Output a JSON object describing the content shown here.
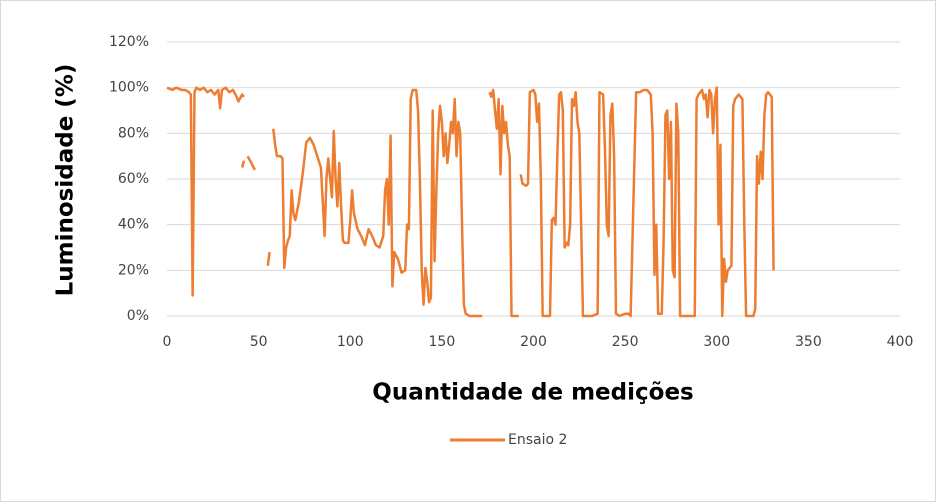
{
  "chart_data": {
    "type": "line",
    "x_label": "Quantidade de medições",
    "y_label": "Luminosidade (%)",
    "xlim": [
      0,
      400
    ],
    "xticks": [
      0,
      50,
      100,
      150,
      200,
      250,
      300,
      350,
      400
    ],
    "ylim": [
      0,
      120
    ],
    "yticks": [
      {
        "value": 0,
        "label": "0%"
      },
      {
        "value": 20,
        "label": "20%"
      },
      {
        "value": 40,
        "label": "40%"
      },
      {
        "value": 60,
        "label": "60%"
      },
      {
        "value": 80,
        "label": "80%"
      },
      {
        "value": 100,
        "label": "100%"
      },
      {
        "value": 120,
        "label": "120%"
      }
    ],
    "grid": true,
    "legend": "bottom",
    "x": [
      0,
      3,
      5,
      8,
      10,
      12,
      13,
      14,
      15,
      16,
      18,
      20,
      22,
      24,
      26,
      28,
      29,
      30,
      32,
      34,
      36,
      38,
      39,
      41,
      42,
      null,
      41,
      42,
      null,
      44,
      46,
      48,
      null,
      55,
      56,
      null,
      58,
      59,
      60,
      62,
      63,
      64,
      65,
      66,
      67,
      68,
      69,
      70,
      72,
      74,
      76,
      78,
      80,
      82,
      84,
      86,
      87,
      88,
      90,
      91,
      92,
      93,
      94,
      95,
      96,
      97,
      99,
      100,
      101,
      102,
      104,
      106,
      108,
      110,
      112,
      114,
      116,
      118,
      119,
      120,
      121,
      122,
      123,
      124,
      126,
      128,
      130,
      131,
      132,
      133,
      134,
      136,
      137,
      138,
      139,
      140,
      141,
      142,
      143,
      144,
      145,
      146,
      147,
      148,
      149,
      150,
      151,
      152,
      153,
      154,
      155,
      156,
      157,
      158,
      159,
      160,
      161,
      162,
      163,
      165,
      168,
      170,
      172,
      null,
      176,
      177,
      178,
      179,
      180,
      181,
      182,
      183,
      184,
      185,
      186,
      187,
      188,
      190,
      192,
      null,
      193,
      194,
      196,
      197,
      198,
      200,
      201,
      202,
      203,
      204,
      205,
      207,
      209,
      210,
      211,
      212,
      213,
      214,
      215,
      216,
      217,
      218,
      219,
      220,
      221,
      222,
      223,
      224,
      225,
      226,
      227,
      230,
      232,
      235,
      236,
      238,
      239,
      240,
      241,
      242,
      243,
      244,
      245,
      247,
      250,
      252,
      253,
      256,
      258,
      260,
      262,
      264,
      265,
      266,
      267,
      268,
      270,
      271,
      272,
      273,
      274,
      275,
      276,
      277,
      278,
      279,
      280,
      284,
      286,
      288,
      289,
      290,
      292,
      293,
      294,
      295,
      296,
      297,
      298,
      299,
      300,
      301,
      302,
      303,
      304,
      305,
      306,
      308,
      309,
      310,
      312,
      313,
      314,
      315,
      316,
      320,
      321,
      322,
      323,
      324,
      325,
      326,
      327,
      328,
      329,
      330,
      331
    ],
    "series": [
      {
        "name": "Ensaio 2",
        "color": "#ed7d31",
        "values": [
          100,
          99,
          100,
          99,
          99,
          98,
          97,
          9,
          98,
          100,
          99,
          100,
          98,
          99,
          97,
          99,
          91,
          99,
          100,
          98,
          99,
          96,
          94,
          97,
          96,
          null,
          65,
          68,
          null,
          70,
          67,
          64,
          null,
          22,
          28,
          null,
          82,
          75,
          70,
          70,
          69,
          21,
          30,
          33,
          35,
          55,
          45,
          42,
          50,
          62,
          76,
          78,
          75,
          70,
          65,
          35,
          60,
          69,
          52,
          81,
          60,
          48,
          67,
          48,
          33,
          32,
          32,
          42,
          55,
          45,
          38,
          35,
          31,
          38,
          35,
          31,
          30,
          35,
          55,
          60,
          40,
          79,
          13,
          28,
          25,
          19,
          20,
          40,
          38,
          95,
          99,
          99,
          90,
          60,
          20,
          5,
          21,
          15,
          6,
          8,
          90,
          24,
          55,
          80,
          92,
          85,
          70,
          80,
          67,
          75,
          85,
          80,
          95,
          70,
          85,
          80,
          40,
          5,
          1,
          0,
          0,
          0,
          0,
          null,
          98,
          96,
          99,
          90,
          82,
          95,
          62,
          92,
          80,
          85,
          75,
          70,
          0,
          0,
          0,
          null,
          62,
          58,
          57,
          58,
          98,
          99,
          97,
          85,
          93,
          60,
          0,
          0,
          0,
          42,
          43,
          40,
          70,
          97,
          98,
          90,
          30,
          32,
          31,
          40,
          95,
          92,
          98,
          85,
          80,
          40,
          0,
          0,
          0,
          1,
          98,
          97,
          73,
          40,
          35,
          88,
          93,
          70,
          1,
          0,
          1,
          1,
          0,
          98,
          98,
          99,
          99,
          97,
          80,
          18,
          40,
          1,
          1,
          33,
          88,
          90,
          60,
          85,
          20,
          17,
          93,
          80,
          0,
          0,
          0,
          0,
          95,
          97,
          99,
          95,
          97,
          87,
          99,
          97,
          80,
          95,
          100,
          40,
          75,
          0,
          25,
          15,
          20,
          22,
          92,
          95,
          97,
          96,
          95,
          42,
          0,
          0,
          3,
          70,
          58,
          72,
          60,
          88,
          97,
          98,
          97,
          96,
          20
        ]
      }
    ]
  }
}
